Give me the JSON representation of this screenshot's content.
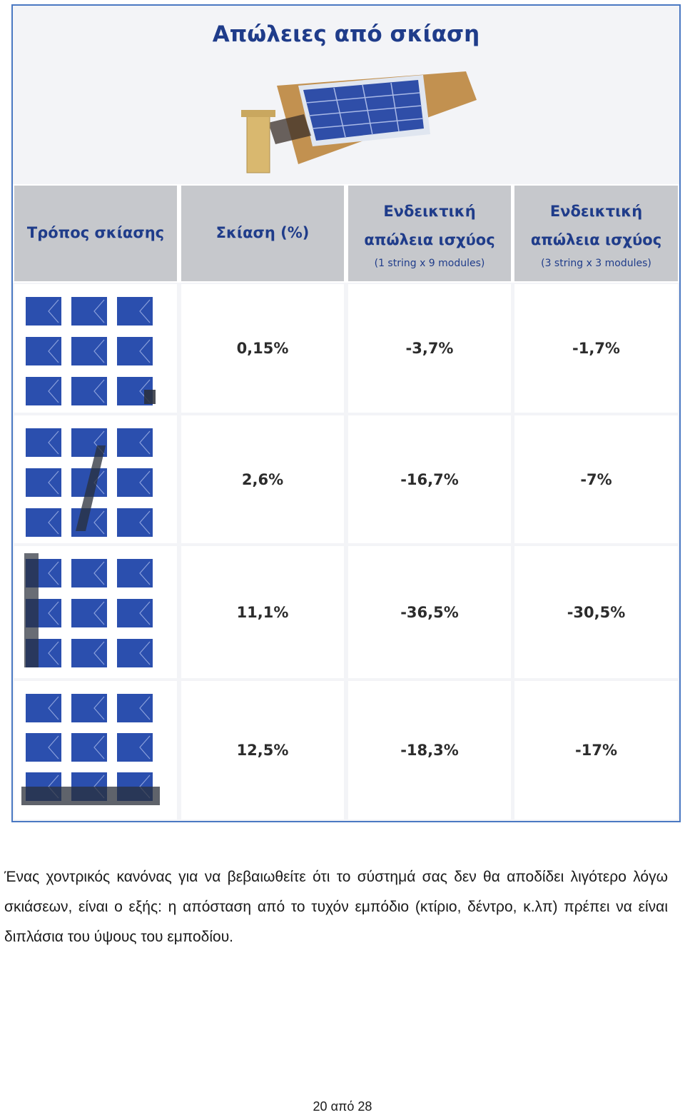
{
  "figure": {
    "title": "Απώλειες από σκίαση",
    "table": {
      "headers": [
        {
          "main": [
            "Τρόπος σκίασης"
          ],
          "sub": ""
        },
        {
          "main": [
            "Σκίαση (%)"
          ],
          "sub": ""
        },
        {
          "main": [
            "Ενδεικτική",
            "απώλεια ισχύος"
          ],
          "sub": "(1 string x 9 modules)"
        },
        {
          "main": [
            "Ενδεικτική",
            "απώλεια ισχύος"
          ],
          "sub": "(3 string x 3 modules)"
        }
      ],
      "rows": [
        {
          "diagram": "single-cell-shading-diagram",
          "shading": "0,15%",
          "loss_1x9": "-3,7%",
          "loss_3x3": "-1,7%"
        },
        {
          "diagram": "diagonal-pole-shading-diagram",
          "shading": "2,6%",
          "loss_1x9": "-16,7%",
          "loss_3x3": "-7%"
        },
        {
          "diagram": "vertical-column-shading-diagram",
          "shading": "11,1%",
          "loss_1x9": "-36,5%",
          "loss_3x3": "-30,5%"
        },
        {
          "diagram": "bottom-row-shading-diagram",
          "shading": "12,5%",
          "loss_1x9": "-18,3%",
          "loss_3x3": "-17%"
        }
      ]
    },
    "colors": {
      "title": "#1f3c8a",
      "module": "#2b4fae",
      "shadow": "#2a2f3a",
      "header_bg": "#c6c8cc"
    }
  },
  "body_text": "Ένας χοντρικός κανόνας για να βεβαιωθείτε ότι το σύστημά σας δεν θα αποδίδει λιγότερο λόγω σκιάσεων, είναι ο εξής: η απόσταση από το τυχόν εμπόδιο (κτίριο, δέντρο, κ.λπ) πρέπει να είναι διπλάσια του ύψους του εμποδίου.",
  "footer": "20 από 28"
}
